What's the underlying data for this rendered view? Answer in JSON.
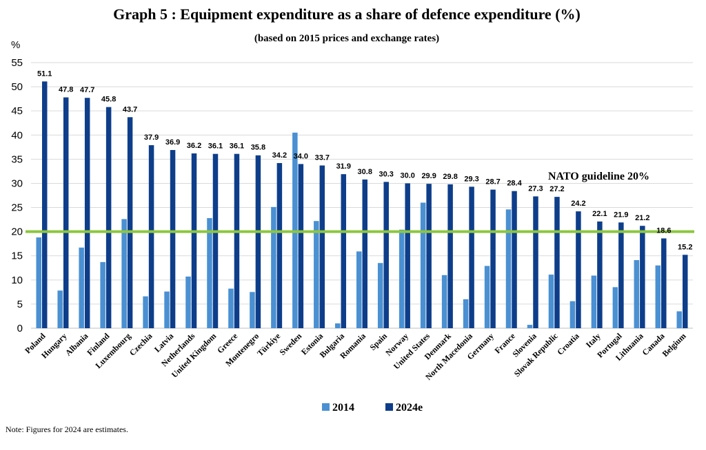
{
  "chart_data": {
    "type": "bar",
    "title": "Graph 5 : Equipment expenditure as a share of defence expenditure (%)",
    "subtitle": "(based on 2015 prices and exchange rates)",
    "ylabel": "%",
    "xlabel": "",
    "ylim": [
      0,
      55
    ],
    "yticks": [
      0,
      5,
      10,
      15,
      20,
      25,
      30,
      35,
      40,
      45,
      50,
      55
    ],
    "grid": true,
    "legend_position": "bottom",
    "categories": [
      "Poland",
      "Hungary",
      "Albania",
      "Finland",
      "Luxembourg",
      "Czechia",
      "Latvia",
      "Netherlands",
      "United Kingdom",
      "Greece",
      "Montenegro",
      "Türkiye",
      "Sweden",
      "Estonia",
      "Bulgaria",
      "Romania",
      "Spain",
      "Norway",
      "United States",
      "Denmark",
      "North Macedonia",
      "Germany",
      "France",
      "Slovenia",
      "Slovak Republic",
      "Croatia",
      "Italy",
      "Portugal",
      "Lithuania",
      "Canada",
      "Belgium"
    ],
    "series": [
      {
        "name": "2014",
        "color": "#4a90d2",
        "values": [
          18.8,
          7.8,
          16.7,
          13.7,
          22.6,
          6.6,
          7.6,
          10.7,
          22.8,
          8.2,
          7.5,
          25.1,
          40.5,
          22.2,
          1.0,
          15.9,
          13.5,
          20.4,
          26.0,
          11.0,
          6.0,
          12.9,
          24.6,
          0.7,
          11.1,
          5.6,
          10.9,
          8.5,
          14.1,
          13.0,
          3.5
        ],
        "labels": []
      },
      {
        "name": "2024e",
        "color": "#0e3e8a",
        "values": [
          51.1,
          47.8,
          47.7,
          45.8,
          43.7,
          37.9,
          36.9,
          36.2,
          36.1,
          36.1,
          35.8,
          34.2,
          34.0,
          33.7,
          31.9,
          30.8,
          30.3,
          30.0,
          29.9,
          29.8,
          29.3,
          28.7,
          28.4,
          27.3,
          27.2,
          24.2,
          22.1,
          21.9,
          21.2,
          18.6,
          15.2
        ],
        "labels": [
          "51.1",
          "47.8",
          "47.7",
          "45.8",
          "43.7",
          "37.9",
          "36.9",
          "36.2",
          "36.1",
          "36.1",
          "35.8",
          "34.2",
          "34.0",
          "33.7",
          "31.9",
          "30.8",
          "30.3",
          "30.0",
          "29.9",
          "29.8",
          "29.3",
          "28.7",
          "28.4",
          "27.3",
          "27.2",
          "24.2",
          "22.1",
          "21.9",
          "21.2",
          "18.6",
          "15.2"
        ]
      }
    ],
    "guideline": {
      "value": 20,
      "label": "NATO guideline 20%",
      "color": "#8cc63f"
    },
    "note": "Note: Figures for 2024 are estimates."
  }
}
